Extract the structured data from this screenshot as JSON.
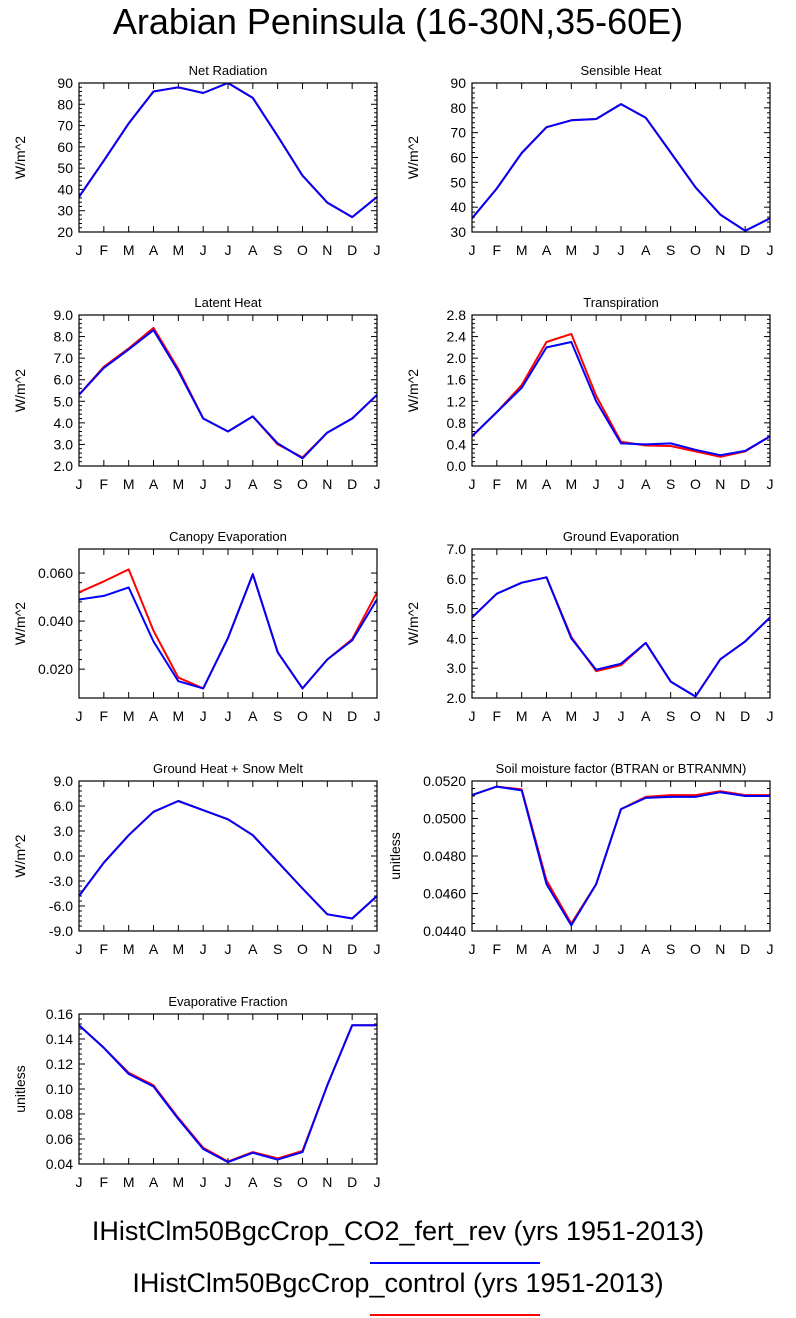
{
  "title": "Arabian Peninsula (16-30N,35-60E)",
  "months": [
    "J",
    "F",
    "M",
    "A",
    "M",
    "J",
    "J",
    "A",
    "S",
    "O",
    "N",
    "D",
    "J"
  ],
  "colors": {
    "co2_fert_rev": "#0000ff",
    "control": "#ff0000"
  },
  "legend": [
    {
      "label": "IHistClm50BgcCrop_CO2_fert_rev (yrs 1951-2013)",
      "color": "#0000ff"
    },
    {
      "label": "IHistClm50BgcCrop_control (yrs 1951-2013)",
      "color": "#ff0000"
    }
  ],
  "chart_data": [
    {
      "type": "line",
      "title": "Net Radiation",
      "ylabel": "W/m^2",
      "ylim": [
        20,
        90
      ],
      "yticks": [
        20,
        30,
        40,
        50,
        60,
        70,
        80,
        90
      ],
      "ytick_labels": [
        "20",
        "30",
        "40",
        "50",
        "60",
        "70",
        "80",
        "90"
      ],
      "series": [
        {
          "color": "#ff0000",
          "values": [
            36.5,
            53.5,
            71.0,
            86.0,
            88.0,
            85.3,
            90.0,
            83.0,
            65.0,
            46.5,
            33.8,
            27.0,
            36.5
          ]
        },
        {
          "color": "#0000ff",
          "values": [
            36.5,
            53.5,
            71.0,
            86.0,
            88.0,
            85.3,
            90.0,
            83.0,
            65.0,
            46.5,
            33.8,
            27.0,
            36.5
          ]
        }
      ]
    },
    {
      "type": "line",
      "title": "Sensible Heat",
      "ylabel": "W/m^2",
      "ylim": [
        30,
        90
      ],
      "yticks": [
        30,
        40,
        50,
        60,
        70,
        80,
        90
      ],
      "ytick_labels": [
        "30",
        "40",
        "50",
        "60",
        "70",
        "80",
        "90"
      ],
      "series": [
        {
          "color": "#ff0000",
          "values": [
            35.5,
            47.5,
            61.8,
            72.2,
            75.0,
            75.5,
            81.5,
            76.0,
            62.0,
            48.0,
            37.0,
            30.5,
            35.5
          ]
        },
        {
          "color": "#0000ff",
          "values": [
            35.5,
            47.5,
            61.8,
            72.2,
            75.0,
            75.5,
            81.5,
            76.0,
            62.0,
            48.0,
            37.0,
            30.5,
            35.5
          ]
        }
      ]
    },
    {
      "type": "line",
      "title": "Latent Heat",
      "ylabel": "W/m^2",
      "ylim": [
        2.0,
        9.0
      ],
      "yticks": [
        2,
        3,
        4,
        5,
        6,
        7,
        8,
        9
      ],
      "ytick_labels": [
        "2.0",
        "3.0",
        "4.0",
        "5.0",
        "6.0",
        "7.0",
        "8.0",
        "9.0"
      ],
      "series": [
        {
          "color": "#ff0000",
          "values": [
            5.3,
            6.6,
            7.45,
            8.4,
            6.5,
            4.2,
            3.6,
            4.3,
            3.0,
            2.4,
            3.55,
            4.2,
            5.3
          ]
        },
        {
          "color": "#0000ff",
          "values": [
            5.3,
            6.55,
            7.4,
            8.3,
            6.4,
            4.2,
            3.6,
            4.3,
            3.05,
            2.35,
            3.55,
            4.2,
            5.3
          ]
        }
      ]
    },
    {
      "type": "line",
      "title": "Transpiration",
      "ylabel": "W/m^2",
      "ylim": [
        0.0,
        2.8
      ],
      "yticks": [
        0,
        0.4,
        0.8,
        1.2,
        1.6,
        2.0,
        2.4,
        2.8
      ],
      "ytick_labels": [
        "0.0",
        "0.4",
        "0.8",
        "1.2",
        "1.6",
        "2.0",
        "2.4",
        "2.8"
      ],
      "series": [
        {
          "color": "#ff0000",
          "values": [
            0.55,
            1.0,
            1.5,
            2.3,
            2.45,
            1.3,
            0.45,
            0.38,
            0.37,
            0.27,
            0.17,
            0.27,
            0.55
          ]
        },
        {
          "color": "#0000ff",
          "values": [
            0.55,
            1.0,
            1.45,
            2.2,
            2.3,
            1.2,
            0.42,
            0.4,
            0.42,
            0.3,
            0.2,
            0.28,
            0.55
          ]
        }
      ]
    },
    {
      "type": "line",
      "title": "Canopy Evaporation",
      "ylabel": "W/m^2",
      "ylim": [
        0.008,
        0.07
      ],
      "yticks": [
        0.02,
        0.04,
        0.06
      ],
      "ytick_labels": [
        "0.020",
        "0.040",
        "0.060"
      ],
      "series": [
        {
          "color": "#ff0000",
          "values": [
            0.052,
            0.0565,
            0.0615,
            0.036,
            0.0165,
            0.012,
            0.033,
            0.0595,
            0.027,
            0.012,
            0.024,
            0.0325,
            0.052
          ]
        },
        {
          "color": "#0000ff",
          "values": [
            0.049,
            0.0505,
            0.054,
            0.0315,
            0.015,
            0.012,
            0.033,
            0.0595,
            0.027,
            0.012,
            0.024,
            0.032,
            0.049
          ]
        }
      ]
    },
    {
      "type": "line",
      "title": "Ground Evaporation",
      "ylabel": "W/m^2",
      "ylim": [
        2.0,
        7.0
      ],
      "yticks": [
        2,
        3,
        4,
        5,
        6,
        7
      ],
      "ytick_labels": [
        "2.0",
        "3.0",
        "4.0",
        "5.0",
        "6.0",
        "7.0"
      ],
      "series": [
        {
          "color": "#ff0000",
          "values": [
            4.7,
            5.5,
            5.87,
            6.05,
            4.05,
            2.9,
            3.1,
            3.85,
            2.55,
            2.05,
            3.3,
            3.9,
            4.7
          ]
        },
        {
          "color": "#0000ff",
          "values": [
            4.7,
            5.5,
            5.87,
            6.05,
            4.0,
            2.95,
            3.15,
            3.85,
            2.55,
            2.05,
            3.3,
            3.9,
            4.7
          ]
        }
      ]
    },
    {
      "type": "line",
      "title": "Ground Heat + Snow Melt",
      "ylabel": "W/m^2",
      "ylim": [
        -9.0,
        9.0
      ],
      "yticks": [
        -9,
        -6,
        -3,
        0,
        3,
        6,
        9
      ],
      "ytick_labels": [
        "-9.0",
        "-6.0",
        "-3.0",
        "0.0",
        "3.0",
        "6.0",
        "9.0"
      ],
      "series": [
        {
          "color": "#ff0000",
          "values": [
            -4.8,
            -0.8,
            2.5,
            5.3,
            6.6,
            5.5,
            4.4,
            2.5,
            -0.7,
            -3.9,
            -7.0,
            -7.5,
            -4.8
          ]
        },
        {
          "color": "#0000ff",
          "values": [
            -4.8,
            -0.8,
            2.5,
            5.3,
            6.6,
            5.5,
            4.4,
            2.5,
            -0.7,
            -3.9,
            -7.0,
            -7.5,
            -4.8
          ]
        }
      ]
    },
    {
      "type": "line",
      "title": "Soil moisture factor (BTRAN or BTRANMN)",
      "ylabel": "unitless",
      "ylim": [
        0.044,
        0.052
      ],
      "yticks": [
        0.044,
        0.046,
        0.048,
        0.05,
        0.052
      ],
      "ytick_labels": [
        "0.0440",
        "0.0460",
        "0.0480",
        "0.0500",
        "0.0520"
      ],
      "series": [
        {
          "color": "#ff0000",
          "values": [
            0.05125,
            0.0517,
            0.05155,
            0.0467,
            0.0444,
            0.0465,
            0.0505,
            0.05115,
            0.05125,
            0.05125,
            0.05145,
            0.05125,
            0.05125
          ]
        },
        {
          "color": "#0000ff",
          "values": [
            0.05125,
            0.0517,
            0.0515,
            0.0465,
            0.0443,
            0.0465,
            0.0505,
            0.0511,
            0.05115,
            0.05115,
            0.0514,
            0.0512,
            0.0512
          ]
        }
      ]
    },
    {
      "type": "line",
      "title": "Evaporative Fraction",
      "ylabel": "unitless",
      "ylim": [
        0.04,
        0.16
      ],
      "yticks": [
        0.04,
        0.06,
        0.08,
        0.1,
        0.12,
        0.14,
        0.16
      ],
      "ytick_labels": [
        "0.04",
        "0.06",
        "0.08",
        "0.10",
        "0.12",
        "0.14",
        "0.16"
      ],
      "series": [
        {
          "color": "#ff0000",
          "values": [
            0.151,
            0.133,
            0.113,
            0.103,
            0.077,
            0.053,
            0.042,
            0.0495,
            0.0445,
            0.0505,
            0.103,
            0.151,
            0.151
          ]
        },
        {
          "color": "#0000ff",
          "values": [
            0.151,
            0.133,
            0.112,
            0.102,
            0.076,
            0.052,
            0.0415,
            0.049,
            0.0435,
            0.0495,
            0.103,
            0.151,
            0.151
          ]
        }
      ]
    }
  ]
}
